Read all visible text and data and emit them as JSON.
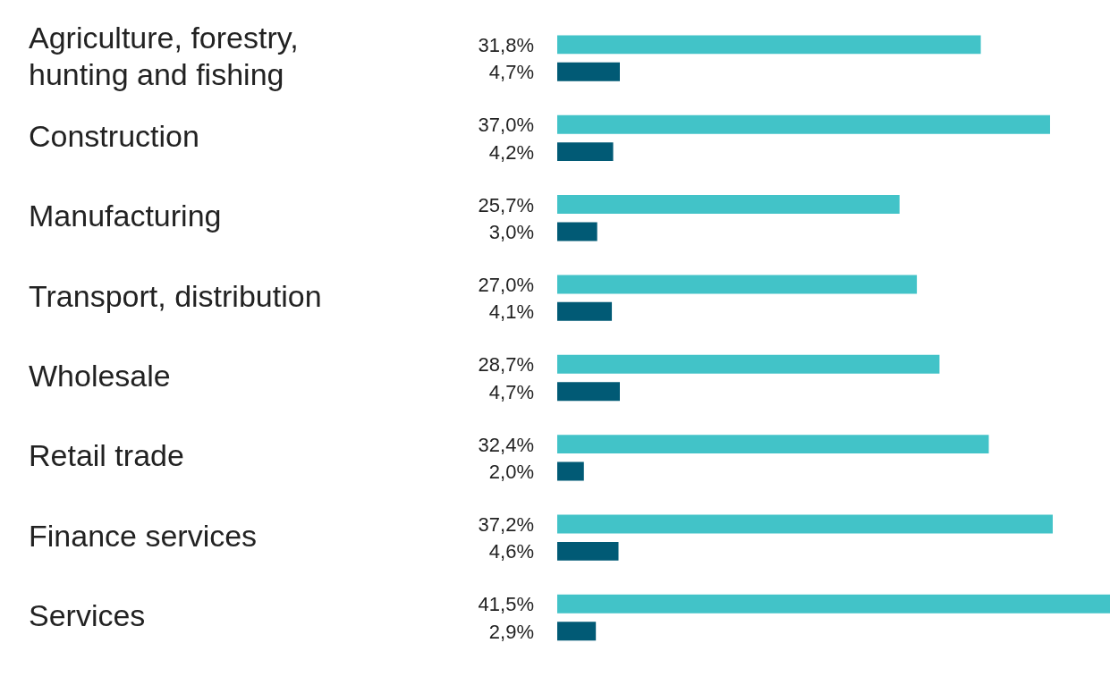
{
  "chart_data": {
    "type": "bar",
    "orientation": "horizontal",
    "categories": [
      "Agriculture, forestry, hunting and fishing",
      "Construction",
      "Manufacturing",
      "Transport, distribution",
      "Wholesale",
      "Retail trade",
      "Finance services",
      "Services"
    ],
    "series": [
      {
        "color": "#42c3c8",
        "values": [
          31.8,
          37.0,
          25.7,
          27.0,
          28.7,
          32.4,
          37.2,
          41.5
        ],
        "value_labels": [
          "31,8%",
          "37,0%",
          "25,7%",
          "27,0%",
          "28,7%",
          "32,4%",
          "37,2%",
          "41,5%"
        ]
      },
      {
        "color": "#015a75",
        "values": [
          4.7,
          4.2,
          3.0,
          4.1,
          4.7,
          2.0,
          4.6,
          2.9
        ],
        "value_labels": [
          "4,7%",
          "4,2%",
          "3,0%",
          "4,1%",
          "4,7%",
          "2,0%",
          "4,6%",
          "2,9%"
        ]
      }
    ],
    "legend": false,
    "tick_labels": "y"
  }
}
